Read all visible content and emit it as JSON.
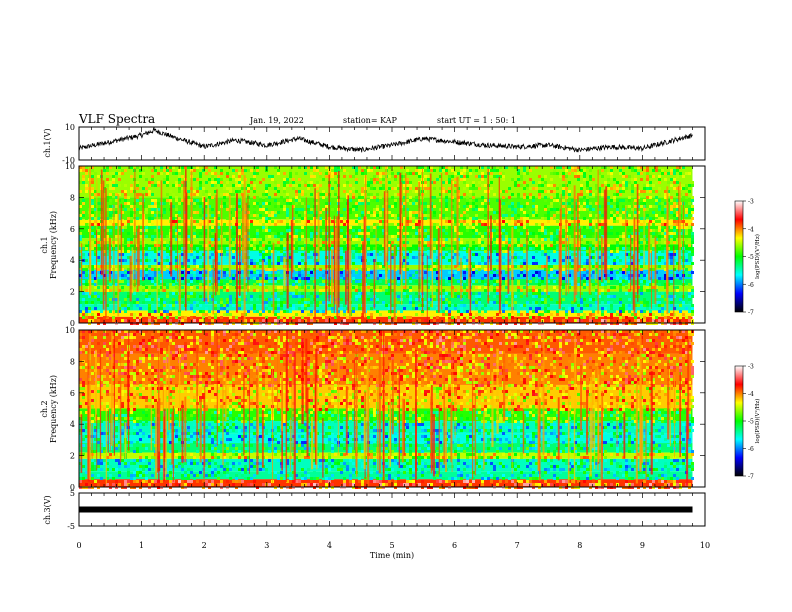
{
  "header": {
    "title": "VLF Spectra",
    "date": "Jan. 19, 2022",
    "station": "station= KAP",
    "start_ut": "start UT =  1 : 50: 1"
  },
  "colorbar": {
    "label": "log(PSD)(V²/Hz)",
    "ticks": [
      "-3",
      "-4",
      "-5",
      "-6",
      "-7"
    ],
    "stops": [
      "#ffffff",
      "#ff0000",
      "#ffff00",
      "#00ff00",
      "#00ffff",
      "#0000ff",
      "#000000"
    ]
  },
  "chart_data": [
    {
      "type": "line",
      "panel": "ch1-waveform",
      "ylabel": "ch.1(V)",
      "ylim": [
        -10,
        10
      ],
      "yticks": [
        "10",
        "-10"
      ],
      "xlim": [
        0,
        10
      ],
      "series": [
        {
          "values_x": [
            0,
            0.5,
            1.0,
            1.2,
            1.5,
            2.0,
            2.5,
            3.0,
            3.5,
            4.0,
            4.5,
            5.0,
            5.5,
            6.0,
            6.5,
            7.0,
            7.5,
            8.0,
            8.5,
            9.0,
            9.5,
            9.8
          ],
          "values_y": [
            -3,
            1,
            5,
            8,
            4,
            -2,
            2,
            -1,
            3,
            -2,
            -4,
            -1,
            3,
            1,
            -1,
            -2,
            -1,
            -4,
            -2,
            -3,
            2,
            5
          ]
        }
      ]
    },
    {
      "type": "heatmap",
      "panel": "ch1-spectrogram",
      "ylabel_line1": "ch.1",
      "ylabel_line2": "Frequency (kHz)",
      "ylim": [
        0,
        10
      ],
      "yticks": [
        "0",
        "2",
        "4",
        "6",
        "8",
        "10"
      ],
      "xlim": [
        0,
        10
      ],
      "data_end": 9.8,
      "levels": [
        {
          "f0": 0.0,
          "f1": 0.4,
          "v": -3.8
        },
        {
          "f0": 0.4,
          "f1": 0.8,
          "v": -4.3
        },
        {
          "f0": 0.8,
          "f1": 1.2,
          "v": -5.5
        },
        {
          "f0": 1.2,
          "f1": 2.0,
          "v": -5.3
        },
        {
          "f0": 2.0,
          "f1": 2.4,
          "v": -4.6
        },
        {
          "f0": 2.4,
          "f1": 2.8,
          "v": -5.2
        },
        {
          "f0": 2.8,
          "f1": 3.4,
          "v": -5.8
        },
        {
          "f0": 3.4,
          "f1": 3.7,
          "v": -4.6
        },
        {
          "f0": 3.7,
          "f1": 4.6,
          "v": -5.6
        },
        {
          "f0": 4.6,
          "f1": 5.0,
          "v": -5.0
        },
        {
          "f0": 5.0,
          "f1": 5.4,
          "v": -4.6
        },
        {
          "f0": 5.4,
          "f1": 6.2,
          "v": -4.9
        },
        {
          "f0": 6.2,
          "f1": 6.6,
          "v": -4.3
        },
        {
          "f0": 6.6,
          "f1": 8.0,
          "v": -4.8
        },
        {
          "f0": 8.0,
          "f1": 10.0,
          "v": -4.6
        }
      ]
    },
    {
      "type": "heatmap",
      "panel": "ch2-spectrogram",
      "ylabel_line1": "ch.2",
      "ylabel_line2": "Frequency (kHz)",
      "ylim": [
        0,
        10
      ],
      "yticks": [
        "0",
        "2",
        "4",
        "6",
        "8",
        "10"
      ],
      "xlim": [
        0,
        10
      ],
      "data_end": 9.8,
      "levels": [
        {
          "f0": 0.0,
          "f1": 0.5,
          "v": -3.8
        },
        {
          "f0": 0.5,
          "f1": 1.0,
          "v": -5.4
        },
        {
          "f0": 1.0,
          "f1": 1.8,
          "v": -5.5
        },
        {
          "f0": 1.8,
          "f1": 2.2,
          "v": -4.5
        },
        {
          "f0": 2.2,
          "f1": 2.8,
          "v": -5.3
        },
        {
          "f0": 2.8,
          "f1": 3.4,
          "v": -5.6
        },
        {
          "f0": 3.4,
          "f1": 4.2,
          "v": -5.5
        },
        {
          "f0": 4.2,
          "f1": 5.0,
          "v": -4.9
        },
        {
          "f0": 5.0,
          "f1": 6.5,
          "v": -4.2
        },
        {
          "f0": 6.5,
          "f1": 8.5,
          "v": -4.0
        },
        {
          "f0": 8.5,
          "f1": 10.0,
          "v": -3.9
        }
      ]
    },
    {
      "type": "line",
      "panel": "ch3-waveform",
      "ylabel": "ch.3(V)",
      "ylim": [
        -5,
        5
      ],
      "yticks": [
        "5",
        "-5"
      ],
      "xlim": [
        0,
        10
      ],
      "xlabel": "Time (min)",
      "xticks": [
        "0",
        "1",
        "2",
        "3",
        "4",
        "5",
        "6",
        "7",
        "8",
        "9",
        "10"
      ],
      "series": [
        {
          "values_x": [
            0,
            9.8
          ],
          "values_y": [
            0,
            0
          ]
        }
      ]
    }
  ]
}
